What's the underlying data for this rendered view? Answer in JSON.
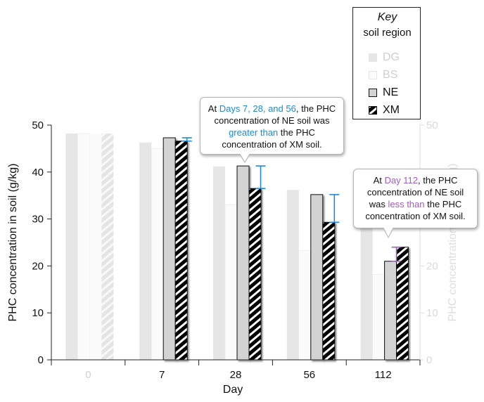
{
  "chart_data": {
    "type": "bar",
    "xlabel": "Day",
    "ylabel": "PHC concentration in soil (g/kg)",
    "ylabel_right": "PHC concentration in soil (g/kg)",
    "ylim": [
      0,
      50
    ],
    "yticks": [
      0,
      10,
      20,
      30,
      40,
      50
    ],
    "categories": [
      "0",
      "7",
      "28",
      "56",
      "112"
    ],
    "series": [
      {
        "name": "DG",
        "values": [
          48.2,
          46.3,
          41.2,
          36.2,
          28.6
        ],
        "color": "#e6e6e6",
        "faded": true
      },
      {
        "name": "BS",
        "values": [
          48.2,
          45.0,
          33.0,
          23.3,
          18.2
        ],
        "color": "#fbfbfb",
        "faded": true
      },
      {
        "name": "NE",
        "values": [
          48.2,
          47.3,
          41.3,
          35.2,
          21.0
        ],
        "color": "#d3d3d3",
        "faded_at_day0": true
      },
      {
        "name": "XM",
        "values": [
          48.2,
          46.6,
          36.5,
          29.3,
          24.0
        ],
        "color": "#000000",
        "pattern": "diagonal-stripes",
        "faded_at_day0": true
      }
    ],
    "differences": [
      {
        "category": "7",
        "from": 47.3,
        "to": 46.6,
        "color": "#1f8bd0"
      },
      {
        "category": "28",
        "from": 41.3,
        "to": 36.5,
        "color": "#1f8bd0"
      },
      {
        "category": "56",
        "from": 35.2,
        "to": 29.3,
        "color": "#1f8bd0"
      },
      {
        "category": "112",
        "from": 21.0,
        "to": 24.0,
        "color": "#a35bc2"
      }
    ],
    "legend": {
      "title": "Key",
      "subtitle": "soil region",
      "entries": [
        "DG",
        "BS",
        "NE",
        "XM"
      ],
      "placement": "top-right"
    }
  },
  "callouts": [
    {
      "parts": [
        {
          "text": "At ",
          "hl": ""
        },
        {
          "text": "Days 7, 28, and 56",
          "hl": "blue"
        },
        {
          "text": ", the PHC concentration of NE soil was ",
          "hl": ""
        },
        {
          "text": "greater than",
          "hl": "blue"
        },
        {
          "text": " the PHC concentration of XM soil.",
          "hl": ""
        }
      ]
    },
    {
      "parts": [
        {
          "text": "At ",
          "hl": ""
        },
        {
          "text": "Day 112",
          "hl": "purple"
        },
        {
          "text": ", the PHC concentration of NE soil was ",
          "hl": ""
        },
        {
          "text": "less than",
          "hl": "purple"
        },
        {
          "text": " the PHC concentration of XM soil.",
          "hl": ""
        }
      ]
    }
  ],
  "colors": {
    "axis": "#222222",
    "faded_text": "#cfcfcf",
    "blue": "#1f8bd0",
    "purple": "#a35bc2"
  }
}
